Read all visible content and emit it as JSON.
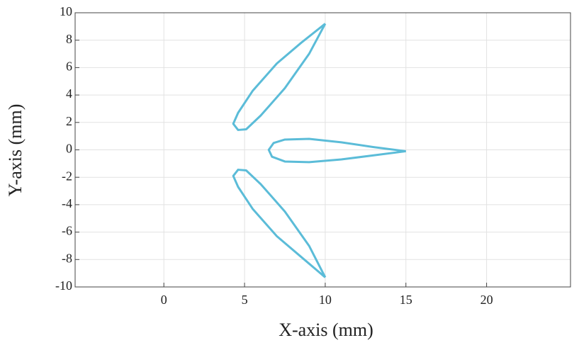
{
  "chart_data": {
    "type": "line",
    "xlabel": "X-axis (mm)",
    "ylabel": "Y-axis (mm)",
    "xlim": [
      -5.5,
      25.2
    ],
    "ylim": [
      -10,
      10
    ],
    "xticks": [
      0,
      5,
      10,
      15,
      20
    ],
    "yticks": [
      -10,
      -8,
      -6,
      -4,
      -2,
      0,
      2,
      4,
      6,
      8,
      10
    ],
    "grid": true,
    "series": [
      {
        "color": "#5bbcd8",
        "x": [
          10,
          8.5,
          7,
          5.5,
          4.6,
          4.3,
          4.6,
          5.1,
          6,
          7.5,
          9,
          10
        ],
        "values": [
          9.2,
          7.8,
          6.3,
          4.3,
          2.7,
          1.9,
          1.45,
          1.5,
          2.5,
          4.5,
          7,
          9.2
        ]
      },
      {
        "color": "#5bbcd8",
        "x": [
          15,
          13,
          11,
          9,
          7.5,
          6.8,
          6.5,
          6.7,
          7.5,
          9,
          11,
          13,
          15
        ],
        "values": [
          -0.1,
          0.2,
          0.55,
          0.8,
          0.75,
          0.5,
          0,
          -0.5,
          -0.85,
          -0.9,
          -0.7,
          -0.4,
          -0.1
        ]
      },
      {
        "color": "#5bbcd8",
        "x": [
          10,
          8.5,
          7,
          5.5,
          4.6,
          4.3,
          4.6,
          5.1,
          6,
          7.5,
          9,
          10
        ],
        "values": [
          -9.3,
          -7.8,
          -6.3,
          -4.3,
          -2.7,
          -1.9,
          -1.45,
          -1.5,
          -2.5,
          -4.5,
          -7,
          -9.3
        ]
      }
    ]
  }
}
